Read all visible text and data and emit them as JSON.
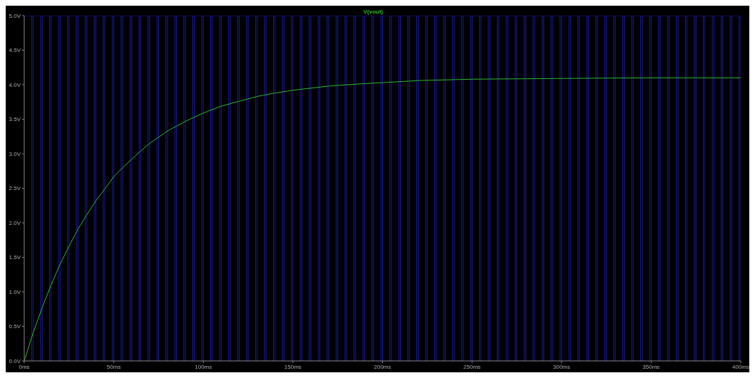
{
  "chart_data": {
    "type": "line",
    "legend": "top",
    "grid": false,
    "marker": "none",
    "line_style": "solid",
    "xlim": [
      0,
      400
    ],
    "xticks": [
      {
        "value": 0,
        "label": "0ms"
      },
      {
        "value": 50,
        "label": "50ms"
      },
      {
        "value": 100,
        "label": "100ms"
      },
      {
        "value": 150,
        "label": "150ms"
      },
      {
        "value": 200,
        "label": "200ms"
      },
      {
        "value": 250,
        "label": "250ms"
      },
      {
        "value": 300,
        "label": "300ms"
      },
      {
        "value": 350,
        "label": "350ms"
      },
      {
        "value": 400,
        "label": "400ms"
      }
    ],
    "ylim": [
      0,
      5
    ],
    "yticks": [
      {
        "value": 0,
        "label": "0.0V"
      },
      {
        "value": 0.5,
        "label": "0.5V"
      },
      {
        "value": 1,
        "label": "1.0V"
      },
      {
        "value": 1.5,
        "label": "1.5V"
      },
      {
        "value": 2,
        "label": "2.0V"
      },
      {
        "value": 2.5,
        "label": "2.5V"
      },
      {
        "value": 3,
        "label": "3.0V"
      },
      {
        "value": 3.5,
        "label": "3.5V"
      },
      {
        "value": 4,
        "label": "4.0V"
      },
      {
        "value": 4.5,
        "label": "4.5V"
      },
      {
        "value": 5,
        "label": "5.0V"
      }
    ],
    "series": [
      {
        "type": "step",
        "color": "#1a1aa8",
        "x": [
          0,
          4.1,
          5,
          9.1,
          10,
          14.1,
          15,
          19.1,
          20,
          24.1,
          25,
          29.1,
          30,
          34.1,
          35,
          39.1,
          40,
          44.1,
          45,
          49.1,
          50,
          54.1,
          55,
          59.1,
          60,
          64.1,
          65,
          69.1,
          70,
          74.1,
          75,
          79.1,
          80,
          84.1,
          85,
          89.1,
          90,
          94.1,
          95,
          99.1,
          100,
          104.1,
          105,
          109.1,
          110,
          114.1,
          115,
          119.1,
          120,
          124.1,
          125,
          129.1,
          130,
          134.1,
          135,
          139.1,
          140,
          144.1,
          145,
          149.1,
          150,
          154.1,
          155,
          159.1,
          160,
          164.1,
          165,
          169.1,
          170,
          174.1,
          175,
          179.1,
          180,
          184.1,
          185,
          189.1,
          190,
          194.1,
          195,
          199.1,
          200,
          204.1,
          205,
          209.1,
          210,
          214.1,
          215,
          219.1,
          220,
          224.1,
          225,
          229.1,
          230,
          234.1,
          235,
          239.1,
          240,
          244.1,
          245,
          249.1,
          250,
          254.1,
          255,
          259.1,
          260,
          264.1,
          265,
          269.1,
          270,
          274.1,
          275,
          279.1,
          280,
          284.1,
          285,
          289.1,
          290,
          294.1,
          295,
          299.1,
          300,
          304.1,
          305,
          309.1,
          310,
          314.1,
          315,
          319.1,
          320,
          324.1,
          325,
          329.1,
          330,
          334.1,
          335,
          339.1,
          340,
          344.1,
          345,
          349.1,
          350,
          354.1,
          355,
          359.1,
          360,
          364.1,
          365,
          369.1,
          370,
          374.1,
          375,
          379.1,
          380,
          384.1,
          385,
          389.1,
          390,
          394.1,
          395,
          399.1,
          400
        ],
        "values": [
          5,
          0,
          5,
          0,
          5,
          0,
          5,
          0,
          5,
          0,
          5,
          0,
          5,
          0,
          5,
          0,
          5,
          0,
          5,
          0,
          5,
          0,
          5,
          0,
          5,
          0,
          5,
          0,
          5,
          0,
          5,
          0,
          5,
          0,
          5,
          0,
          5,
          0,
          5,
          0,
          5,
          0,
          5,
          0,
          5,
          0,
          5,
          0,
          5,
          0,
          5,
          0,
          5,
          0,
          5,
          0,
          5,
          0,
          5,
          0,
          5,
          0,
          5,
          0,
          5,
          0,
          5,
          0,
          5,
          0,
          5,
          0,
          5,
          0,
          5,
          0,
          5,
          0,
          5,
          0,
          5,
          0,
          5,
          0,
          5,
          0,
          5,
          0,
          5,
          0,
          5,
          0,
          5,
          0,
          5,
          0,
          5,
          0,
          5,
          0,
          5,
          0,
          5,
          0,
          5,
          0,
          5,
          0,
          5,
          0,
          5,
          0,
          5,
          0,
          5,
          0,
          5,
          0,
          5,
          0,
          5,
          0,
          5,
          0,
          5,
          0,
          5,
          0,
          5,
          0,
          5,
          0,
          5,
          0,
          5,
          0,
          5,
          0,
          5,
          0,
          5,
          0,
          5,
          0,
          5,
          0,
          5,
          0,
          5,
          0,
          5,
          0,
          5,
          0,
          5,
          0,
          5,
          0,
          5,
          0,
          5
        ]
      },
      {
        "type": "line",
        "name": "V(vout)",
        "color": "#2eb82e",
        "x": [
          0,
          5,
          10,
          15,
          20,
          25,
          30,
          35,
          40,
          45,
          50,
          55,
          60,
          65,
          70,
          75,
          80,
          85,
          90,
          95,
          100,
          110,
          120,
          130,
          140,
          150,
          160,
          170,
          180,
          200,
          220,
          250,
          300,
          350,
          400
        ],
        "values": [
          0,
          0.41,
          0.77,
          1.1,
          1.4,
          1.66,
          1.91,
          2.12,
          2.32,
          2.49,
          2.67,
          2.8,
          2.92,
          3.04,
          3.15,
          3.24,
          3.33,
          3.4,
          3.47,
          3.53,
          3.59,
          3.69,
          3.76,
          3.83,
          3.88,
          3.92,
          3.95,
          3.98,
          4.0,
          4.03,
          4.06,
          4.08,
          4.09,
          4.1,
          4.1
        ]
      }
    ]
  }
}
